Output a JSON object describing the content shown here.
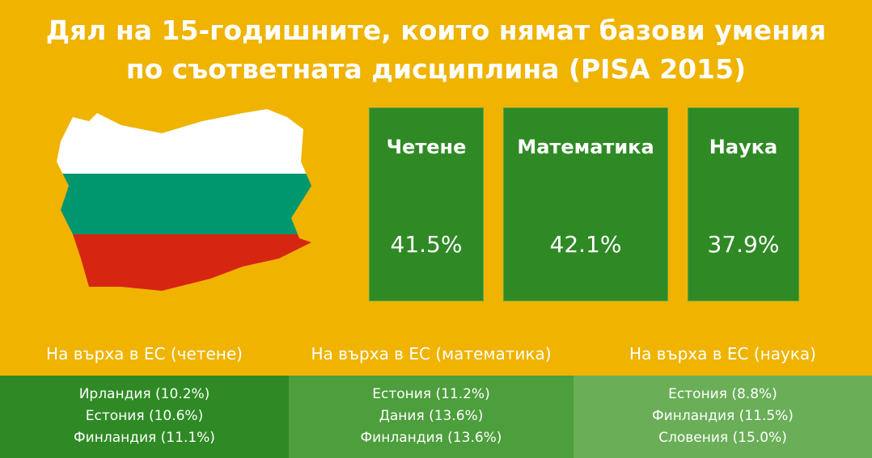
{
  "header": {
    "title_lines": [
      "Дял на 15-годишните, които нямат базови умения",
      "по съответната дисциплина (PISA 2015)"
    ]
  },
  "boxes": [
    {
      "label": "Четене",
      "value": "41.5%"
    },
    {
      "label": "Математика",
      "value": "42.1%"
    },
    {
      "label": "Наука",
      "value": "37.9%"
    }
  ],
  "top_eu": [
    {
      "heading": "На върха в ЕС (четене)",
      "items": [
        "Ирландия (10.2%)",
        "Естония (10.6%)",
        "Финландия (11.1%)"
      ]
    },
    {
      "heading": "На върха в ЕС (математика)",
      "items": [
        "Естония (11.2%)",
        "Дания (13.6%)",
        "Финландия (13.6%)"
      ]
    },
    {
      "heading": "На върха в ЕС (наука)",
      "items": [
        "Естония (8.8%)",
        "Финландия (11.5%)",
        "Словения (15.0%)"
      ]
    }
  ]
}
